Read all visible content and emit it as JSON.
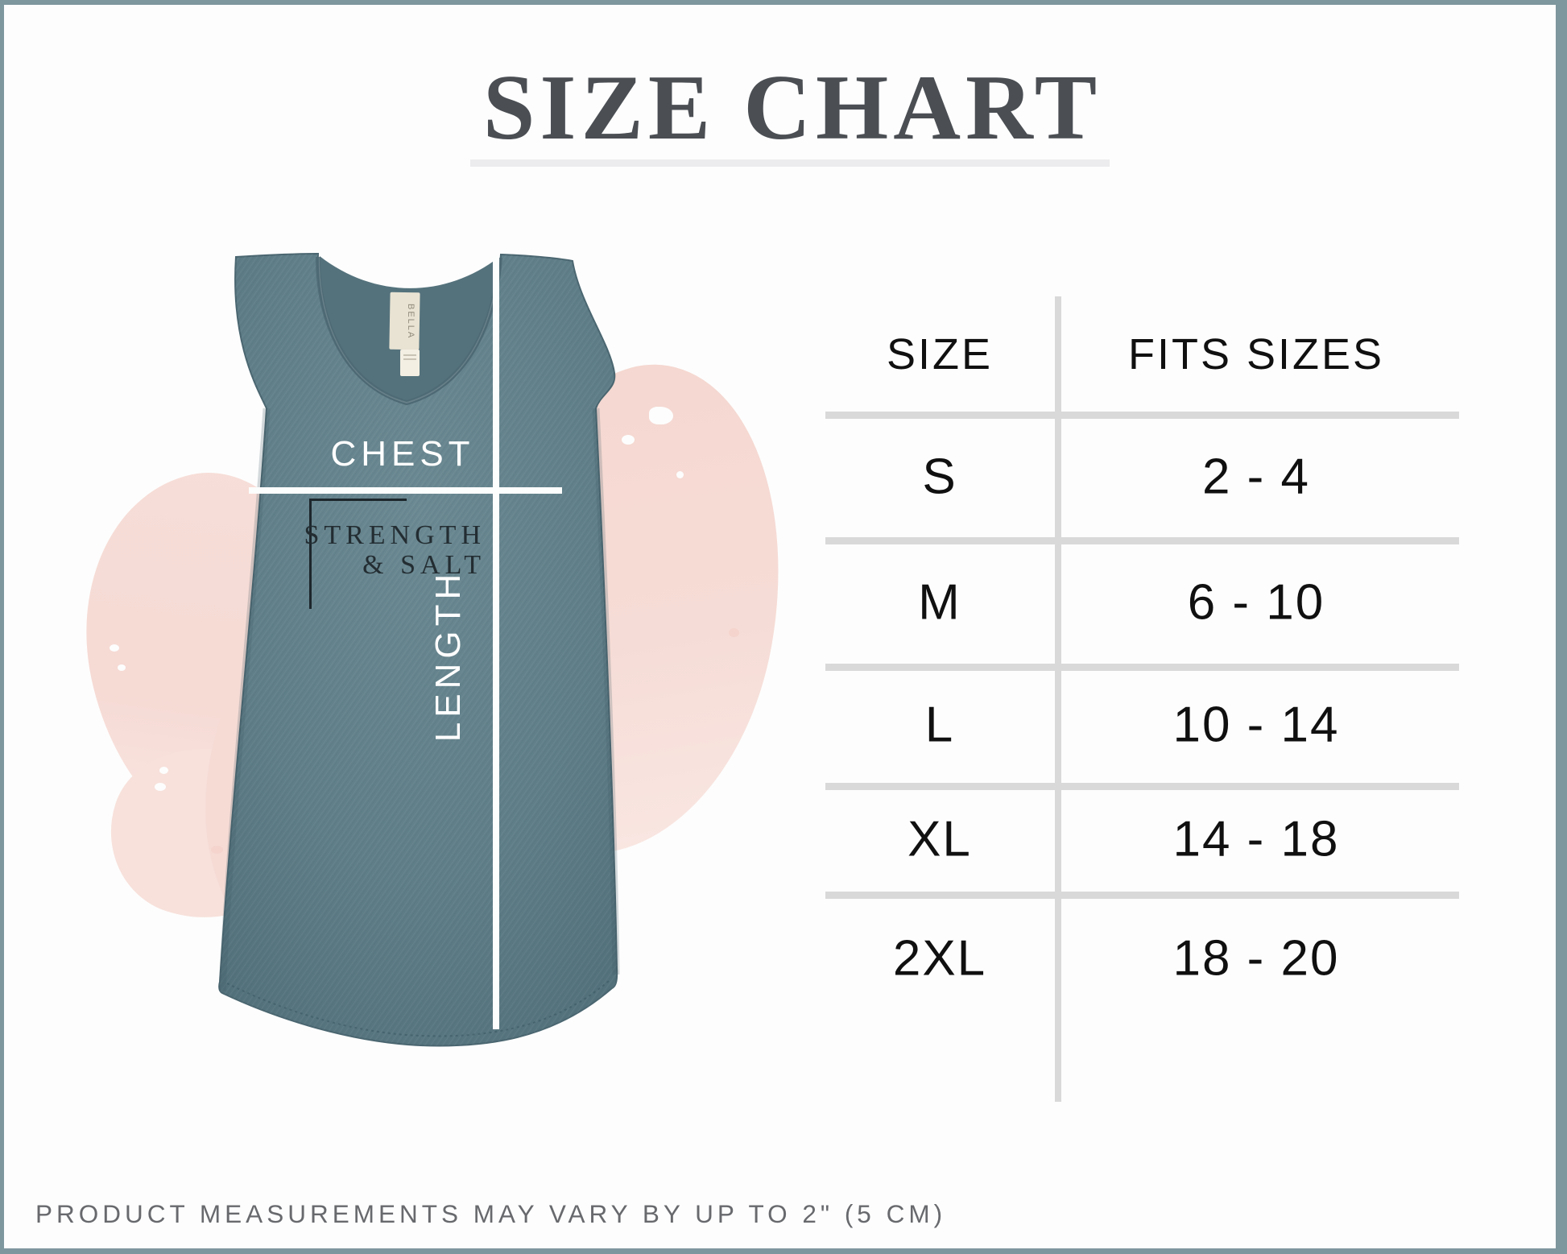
{
  "page": {
    "title": "SIZE CHART",
    "footnote": "PRODUCT MEASUREMENTS MAY VARY BY UP TO 2\" (5 CM)"
  },
  "product": {
    "brand_tag": "BELLA",
    "design_line1": "STRENGTH",
    "design_line2": "& SALT",
    "chest_label": "CHEST",
    "length_label": "LENGTH"
  },
  "chart_data": {
    "type": "table",
    "title": "SIZE CHART",
    "columns": [
      "SIZE",
      "FITS SIZES"
    ],
    "rows": [
      [
        "S",
        "2 - 4"
      ],
      [
        "M",
        "6 - 10"
      ],
      [
        "L",
        "10 - 14"
      ],
      [
        "XL",
        "14 - 18"
      ],
      [
        "2XL",
        "18 - 20"
      ]
    ],
    "footnote": "PRODUCT MEASUREMENTS MAY VARY BY UP TO 2\" (5 CM)"
  },
  "colors": {
    "accent_border": "#7e969e",
    "fabric": "#5f7e88",
    "splash": "#f6dbd5",
    "table_line": "#d9d9d9",
    "title": "#4b4f54",
    "footnote_text": "#67696d"
  }
}
